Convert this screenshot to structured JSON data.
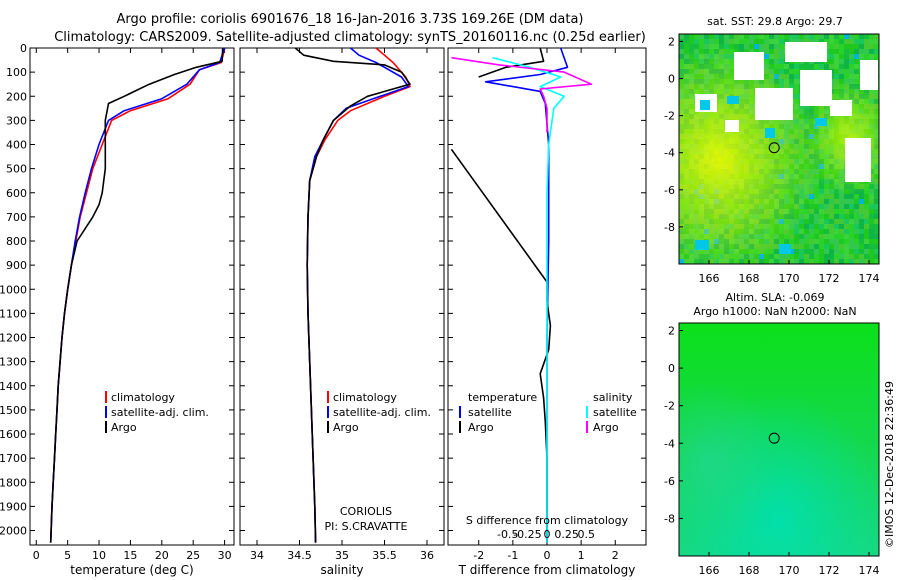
{
  "figure": {
    "title_line1": "Argo profile: coriolis 6901676_18 16-Jan-2016 3.73S 169.26E (DM data)",
    "title_line2": "Climatology: CARS2009. Satellite-adjusted climatology: synTS_20160116.nc (0.25d earlier)",
    "imos_stamp": "©IMOS 12-Dec-2018 22:36:49",
    "colors": {
      "climatology": "#ff0000",
      "satellite": "#0000ff",
      "argo": "#000000",
      "sal_satellite": "#00ffff",
      "sal_argo": "#ff00ff"
    }
  },
  "chart_data": [
    {
      "type": "line",
      "panel": "temperature",
      "xlabel": "temperature (deg C)",
      "xlim": [
        -1,
        31.5
      ],
      "xticks": [
        0,
        5,
        10,
        15,
        20,
        25,
        30
      ],
      "ylim": [
        0,
        2060
      ],
      "yticks": [
        0,
        100,
        200,
        300,
        400,
        500,
        600,
        700,
        800,
        900,
        1000,
        1100,
        1200,
        1300,
        1400,
        1500,
        1600,
        1700,
        1800,
        1900,
        2000
      ],
      "legend": [
        "climatology",
        "satellite-adj. clim.",
        "Argo"
      ],
      "series": [
        {
          "name": "climatology",
          "color": "#ff0000",
          "points": [
            [
              30,
              0
            ],
            [
              29.5,
              60
            ],
            [
              26,
              90
            ],
            [
              24.5,
              150
            ],
            [
              21,
              210
            ],
            [
              15,
              260
            ],
            [
              12,
              300
            ],
            [
              10.5,
              400
            ],
            [
              9,
              500
            ],
            [
              8,
              600
            ],
            [
              7,
              700
            ],
            [
              6.3,
              800
            ],
            [
              5.6,
              900
            ],
            [
              5,
              1000
            ],
            [
              4.5,
              1100
            ],
            [
              4.1,
              1200
            ],
            [
              3.8,
              1300
            ],
            [
              3.5,
              1400
            ],
            [
              3.3,
              1500
            ],
            [
              3.1,
              1600
            ],
            [
              2.9,
              1700
            ],
            [
              2.7,
              1800
            ],
            [
              2.5,
              1900
            ],
            [
              2.3,
              2050
            ]
          ]
        },
        {
          "name": "satellite-adj. clim.",
          "color": "#0000ff",
          "points": [
            [
              30,
              0
            ],
            [
              29.2,
              60
            ],
            [
              26,
              90
            ],
            [
              24,
              150
            ],
            [
              20,
              210
            ],
            [
              14,
              260
            ],
            [
              11.5,
              300
            ],
            [
              10,
              400
            ],
            [
              8.8,
              500
            ],
            [
              7.8,
              600
            ],
            [
              6.9,
              700
            ],
            [
              6.2,
              800
            ],
            [
              5.6,
              900
            ],
            [
              5,
              1000
            ],
            [
              4.5,
              1100
            ],
            [
              4.1,
              1200
            ],
            [
              3.8,
              1300
            ],
            [
              3.5,
              1400
            ],
            [
              3.3,
              1500
            ],
            [
              3.1,
              1600
            ],
            [
              2.9,
              1700
            ],
            [
              2.7,
              1800
            ],
            [
              2.5,
              1900
            ],
            [
              2.3,
              2050
            ]
          ]
        },
        {
          "name": "Argo",
          "color": "#000000",
          "points": [
            [
              29.7,
              0
            ],
            [
              29.6,
              55
            ],
            [
              25.5,
              80
            ],
            [
              22,
              110
            ],
            [
              18,
              150
            ],
            [
              14,
              200
            ],
            [
              11.5,
              230
            ],
            [
              11,
              300
            ],
            [
              11,
              400
            ],
            [
              11,
              500
            ],
            [
              10.5,
              600
            ],
            [
              10,
              650
            ],
            [
              9,
              700
            ],
            [
              6.5,
              800
            ],
            [
              5.6,
              900
            ],
            [
              5,
              1000
            ],
            [
              4.5,
              1100
            ],
            [
              4.1,
              1200
            ],
            [
              3.8,
              1300
            ],
            [
              3.5,
              1400
            ],
            [
              3.3,
              1500
            ],
            [
              3.1,
              1600
            ],
            [
              2.9,
              1700
            ],
            [
              2.7,
              1800
            ],
            [
              2.5,
              1900
            ],
            [
              2.3,
              2050
            ]
          ]
        }
      ]
    },
    {
      "type": "line",
      "panel": "salinity",
      "xlabel": "salinity",
      "xlim": [
        33.8,
        36.2
      ],
      "xticks": [
        34,
        34.5,
        35,
        35.5,
        36
      ],
      "ylim": [
        0,
        2060
      ],
      "legend": [
        "climatology",
        "satellite-adj. clim.",
        "Argo"
      ],
      "annotation": [
        "CORIOLIS",
        "PI: S.CRAVATTE"
      ],
      "series": [
        {
          "name": "climatology",
          "color": "#ff0000",
          "points": [
            [
              35.4,
              0
            ],
            [
              35.5,
              30
            ],
            [
              35.6,
              60
            ],
            [
              35.75,
              120
            ],
            [
              35.8,
              160
            ],
            [
              35.5,
              200
            ],
            [
              35.1,
              260
            ],
            [
              34.95,
              300
            ],
            [
              34.8,
              380
            ],
            [
              34.7,
              450
            ],
            [
              34.62,
              550
            ],
            [
              34.6,
              700
            ],
            [
              34.59,
              900
            ],
            [
              34.6,
              1100
            ],
            [
              34.62,
              1300
            ],
            [
              34.64,
              1500
            ],
            [
              34.66,
              1700
            ],
            [
              34.68,
              1900
            ],
            [
              34.69,
              2050
            ]
          ]
        },
        {
          "name": "satellite-adj. clim.",
          "color": "#0000ff",
          "points": [
            [
              35.1,
              0
            ],
            [
              35.2,
              30
            ],
            [
              35.4,
              60
            ],
            [
              35.7,
              120
            ],
            [
              35.78,
              160
            ],
            [
              35.45,
              200
            ],
            [
              35.05,
              250
            ],
            [
              34.9,
              300
            ],
            [
              34.78,
              380
            ],
            [
              34.68,
              450
            ],
            [
              34.62,
              550
            ],
            [
              34.6,
              700
            ],
            [
              34.59,
              900
            ],
            [
              34.6,
              1100
            ],
            [
              34.62,
              1300
            ],
            [
              34.64,
              1500
            ],
            [
              34.66,
              1700
            ],
            [
              34.68,
              1900
            ],
            [
              34.69,
              2050
            ]
          ]
        },
        {
          "name": "Argo",
          "color": "#000000",
          "points": [
            [
              34.45,
              0
            ],
            [
              34.55,
              30
            ],
            [
              34.9,
              55
            ],
            [
              35.5,
              70
            ],
            [
              35.7,
              100
            ],
            [
              35.8,
              150
            ],
            [
              35.6,
              170
            ],
            [
              35.3,
              200
            ],
            [
              35.1,
              240
            ],
            [
              34.9,
              300
            ],
            [
              34.78,
              380
            ],
            [
              34.7,
              450
            ],
            [
              34.62,
              550
            ],
            [
              34.6,
              700
            ],
            [
              34.59,
              900
            ],
            [
              34.6,
              1100
            ],
            [
              34.62,
              1300
            ],
            [
              34.64,
              1500
            ],
            [
              34.66,
              1700
            ],
            [
              34.68,
              1900
            ],
            [
              34.69,
              2050
            ]
          ]
        }
      ]
    },
    {
      "type": "line",
      "panel": "differences",
      "xlabel": "T difference from climatology",
      "xlabel2": "S difference from climatology",
      "xlim": [
        -2.9,
        2.9
      ],
      "xticks": [
        -2,
        -1,
        0,
        1,
        2
      ],
      "xticks_s": [
        "-0.5",
        "-0.25",
        "0",
        "0.25",
        "0.5"
      ],
      "ylim": [
        0,
        2060
      ],
      "legend_temperature": {
        "title": "temperature",
        "items": [
          "satellite",
          "Argo"
        ]
      },
      "legend_salinity": {
        "title": "salinity",
        "items": [
          "satellite",
          "Argo"
        ]
      },
      "series": [
        {
          "name": "T satellite",
          "color": "#0000ff",
          "points": [
            [
              0.4,
              0
            ],
            [
              0.6,
              80
            ],
            [
              -0.2,
              110
            ],
            [
              -1.8,
              140
            ],
            [
              -0.2,
              180
            ],
            [
              -0.05,
              230
            ],
            [
              0.05,
              400
            ],
            [
              0.05,
              800
            ],
            [
              0,
              1200
            ],
            [
              0,
              1600
            ],
            [
              0,
              2050
            ]
          ]
        },
        {
          "name": "T Argo",
          "color": "#000000",
          "points": [
            [
              -2.8,
              420
            ],
            [
              0,
              970
            ],
            [
              0,
              1050
            ],
            [
              0.1,
              1150
            ],
            [
              0.05,
              1250
            ],
            [
              -0.2,
              1350
            ],
            [
              -0.1,
              1450
            ],
            [
              -0.05,
              1550
            ],
            [
              0,
              1700
            ],
            [
              0,
              2050
            ]
          ]
        },
        {
          "name": "T Argo surface",
          "color": "#000000",
          "points": [
            [
              -0.2,
              0
            ],
            [
              -0.1,
              55
            ],
            [
              -1.2,
              80
            ],
            [
              -2.0,
              120
            ]
          ]
        },
        {
          "name": "S satellite",
          "color": "#00ffff",
          "points": [
            [
              -1.6,
              40
            ],
            [
              -0.5,
              80
            ],
            [
              0.4,
              120
            ],
            [
              -0.2,
              160
            ],
            [
              0.5,
              200
            ],
            [
              0.2,
              250
            ],
            [
              0.05,
              400
            ],
            [
              0,
              600
            ],
            [
              0,
              1000
            ],
            [
              0,
              1600
            ],
            [
              0,
              2050
            ]
          ]
        },
        {
          "name": "S Argo",
          "color": "#ff00ff",
          "points": [
            [
              -2.8,
              40
            ],
            [
              -1.4,
              70
            ],
            [
              0.5,
              100
            ],
            [
              1.3,
              150
            ],
            [
              -0.2,
              170
            ],
            [
              -0.1,
              200
            ],
            [
              0,
              250
            ],
            [
              0,
              350
            ]
          ]
        }
      ]
    },
    {
      "type": "heatmap",
      "panel": "sst_map",
      "title": "sat. SST: 29.8 Argo: 29.7",
      "xlim": [
        164.5,
        174.5
      ],
      "ylim": [
        -10,
        2.4
      ],
      "xticks": [
        166,
        168,
        170,
        172,
        174
      ],
      "yticks": [
        2,
        0,
        -2,
        -4,
        -6,
        -8
      ],
      "argo_position": [
        169.26,
        -3.73
      ]
    },
    {
      "type": "heatmap",
      "panel": "sla_map",
      "title": "Altim. SLA: -0.069",
      "subtitle": "Argo h1000: NaN h2000: NaN",
      "xlim": [
        164.5,
        174.5
      ],
      "ylim": [
        -10,
        2.4
      ],
      "xticks": [
        166,
        168,
        170,
        172,
        174
      ],
      "yticks": [
        2,
        0,
        -2,
        -4,
        -6,
        -8
      ],
      "argo_position": [
        169.26,
        -3.73
      ]
    }
  ]
}
